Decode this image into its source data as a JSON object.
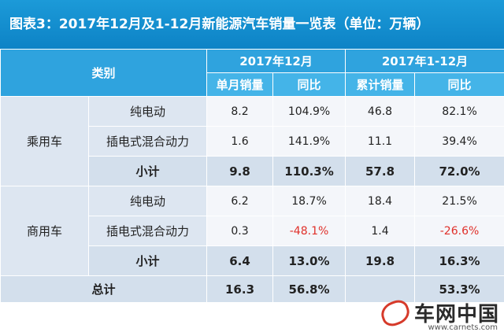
{
  "title": "图表3：2017年12月及1-12月新能源汽车销量一览表（单位：万辆）",
  "header": {
    "category": "类别",
    "period1": "2017年12月",
    "period2": "2017年1-12月",
    "monthly_sales": "单月销量",
    "yoy1": "同比",
    "cumulative_sales": "累计销量",
    "yoy2": "同比"
  },
  "passenger": {
    "name": "乘用车",
    "rows": [
      {
        "type": "纯电动",
        "monthly": "8.2",
        "yoy_m": "104.9%",
        "cumulative": "46.8",
        "yoy_c": "82.1%"
      },
      {
        "type": "插电式混合动力",
        "monthly": "1.6",
        "yoy_m": "141.9%",
        "cumulative": "11.1",
        "yoy_c": "39.4%"
      }
    ],
    "subtotal": {
      "label": "小计",
      "monthly": "9.8",
      "yoy_m": "110.3%",
      "cumulative": "57.8",
      "yoy_c": "72.0%"
    }
  },
  "commercial": {
    "name": "商用车",
    "rows": [
      {
        "type": "纯电动",
        "monthly": "6.2",
        "yoy_m": "18.7%",
        "cumulative": "18.4",
        "yoy_c": "21.5%"
      },
      {
        "type": "插电式混合动力",
        "monthly": "0.3",
        "yoy_m": "-48.1%",
        "cumulative": "1.4",
        "yoy_c": "-26.6%"
      }
    ],
    "subtotal": {
      "label": "小计",
      "monthly": "6.4",
      "yoy_m": "13.0%",
      "cumulative": "19.8",
      "yoy_c": "16.3%"
    }
  },
  "total": {
    "label": "总计",
    "monthly": "16.3",
    "yoy_m": "56.8%",
    "cumulative": "",
    "yoy_c": "53.3%"
  },
  "watermark": {
    "text": "车网中国",
    "url": "www.carnets.com"
  },
  "colors": {
    "negative": "#e0302a",
    "header": "#2fa3de"
  }
}
